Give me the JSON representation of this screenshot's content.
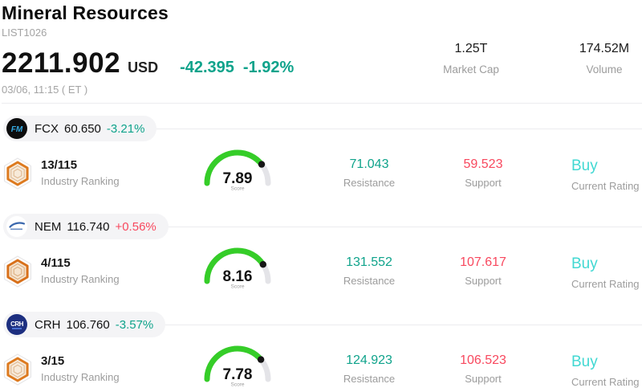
{
  "header": {
    "title": "Mineral Resources",
    "list_id": "LIST1026",
    "price": "2211.902",
    "currency": "USD",
    "change": "-42.395",
    "change_pct": "-1.92%",
    "change_dir": "down",
    "datetime": "03/06, 11:15 ( ET )",
    "market_cap": {
      "value": "1.25T",
      "label": "Market Cap"
    },
    "volume": {
      "value": "174.52M",
      "label": "Volume"
    }
  },
  "labels": {
    "industry_ranking": "Industry Ranking",
    "resistance": "Resistance",
    "support": "Support",
    "current_rating": "Current Rating",
    "score": "Score"
  },
  "colors": {
    "up": "#f8485e",
    "down": "#0fa38b",
    "rating_buy": "#41d8d2",
    "gauge_green": "#35cd28",
    "gauge_track": "#e4e4e8"
  },
  "stocks": [
    {
      "symbol": "FCX",
      "price": "60.650",
      "change": "-3.21%",
      "change_dir": "down",
      "logo_text": "FM",
      "rank": "13/115",
      "score": "7.89",
      "resistance": "71.043",
      "support": "59.523",
      "rating": "Buy"
    },
    {
      "symbol": "NEM",
      "price": "116.740",
      "change": "+0.56%",
      "change_dir": "up",
      "logo_text": "",
      "rank": "4/115",
      "score": "8.16",
      "resistance": "131.552",
      "support": "107.617",
      "rating": "Buy"
    },
    {
      "symbol": "CRH",
      "price": "106.760",
      "change": "-3.57%",
      "change_dir": "down",
      "logo_text": "CRH",
      "rank": "3/15",
      "score": "7.78",
      "resistance": "124.923",
      "support": "106.523",
      "rating": "Buy"
    }
  ]
}
